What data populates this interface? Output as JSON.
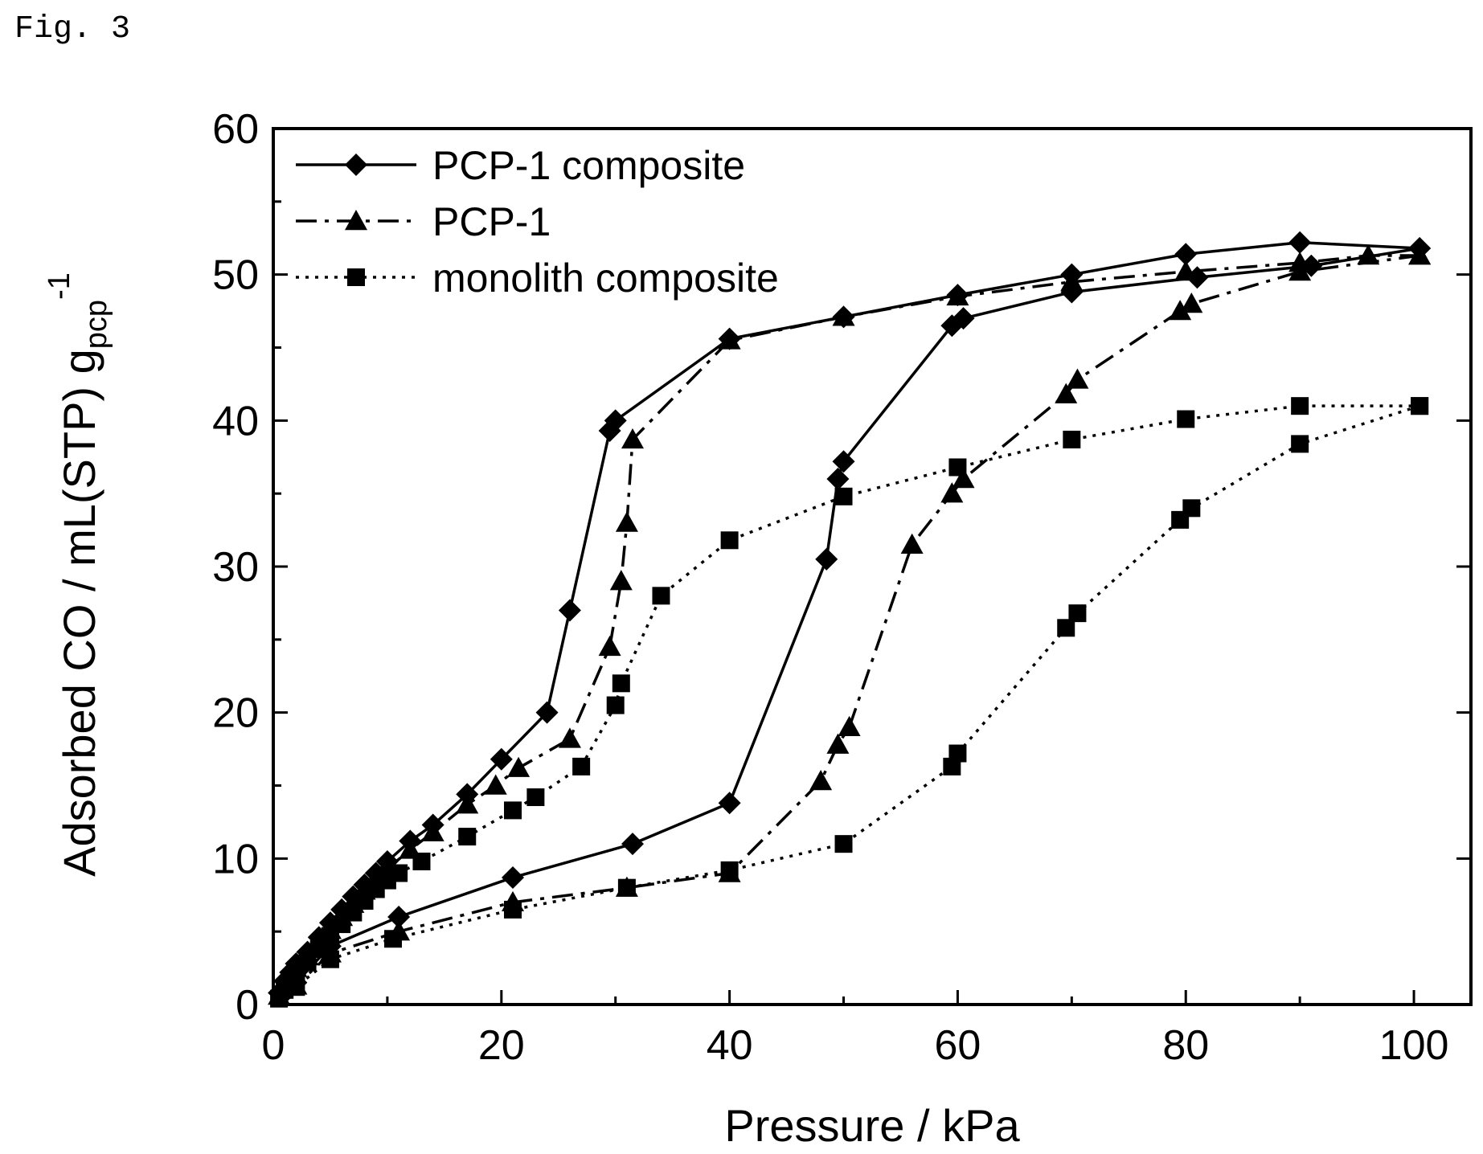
{
  "figure_label": "Fig. 3",
  "chart_data": {
    "type": "line",
    "xlabel": "Pressure / kPa",
    "ylabel_main": "Adsorbed CO / mL(STP) g",
    "ylabel_sub": "pcp",
    "ylabel_sup": "-1",
    "xlim": [
      0,
      105
    ],
    "ylim": [
      0,
      60
    ],
    "xticks": [
      0,
      20,
      40,
      60,
      80,
      100
    ],
    "yticks": [
      0,
      10,
      20,
      30,
      40,
      50,
      60
    ],
    "grid": false,
    "legend_position": "top-left",
    "series": [
      {
        "name": "PCP-1 composite",
        "marker": "diamond",
        "linestyle": "solid",
        "color": "#000000",
        "adsorption": [
          [
            0.5,
            0.8
          ],
          [
            1,
            1.6
          ],
          [
            1.5,
            2.2
          ],
          [
            2,
            2.8
          ],
          [
            3,
            3.6
          ],
          [
            4,
            4.6
          ],
          [
            5,
            5.6
          ],
          [
            6,
            6.5
          ],
          [
            7,
            7.4
          ],
          [
            8,
            8.2
          ],
          [
            9,
            9.0
          ],
          [
            10,
            9.8
          ],
          [
            12,
            11.2
          ],
          [
            14,
            12.3
          ],
          [
            17,
            14.4
          ],
          [
            20,
            16.8
          ],
          [
            24,
            20.0
          ],
          [
            26,
            27.0
          ],
          [
            29.5,
            39.3
          ],
          [
            30,
            40.0
          ],
          [
            40,
            45.6
          ],
          [
            50,
            47.1
          ],
          [
            60,
            48.6
          ],
          [
            70,
            50.0
          ],
          [
            80,
            51.4
          ],
          [
            90,
            52.2
          ],
          [
            100.5,
            51.8
          ]
        ],
        "desorption": [
          [
            100.5,
            51.8
          ],
          [
            91,
            50.6
          ],
          [
            81,
            49.8
          ],
          [
            70,
            48.8
          ],
          [
            60.5,
            47.0
          ],
          [
            59.5,
            46.5
          ],
          [
            50,
            37.2
          ],
          [
            49.5,
            36.0
          ],
          [
            48.5,
            30.5
          ],
          [
            40,
            13.8
          ],
          [
            31.5,
            11.0
          ],
          [
            21,
            8.7
          ],
          [
            11,
            6.0
          ],
          [
            5,
            4.0
          ],
          [
            2,
            1.5
          ],
          [
            1,
            0.8
          ]
        ]
      },
      {
        "name": "PCP-1",
        "marker": "triangle",
        "linestyle": "dashdot",
        "color": "#000000",
        "adsorption": [
          [
            0.5,
            0.6
          ],
          [
            1,
            1.3
          ],
          [
            1.5,
            2.0
          ],
          [
            2,
            2.5
          ],
          [
            3,
            3.3
          ],
          [
            4,
            4.2
          ],
          [
            5,
            5.1
          ],
          [
            6,
            6.0
          ],
          [
            7,
            6.9
          ],
          [
            8,
            7.8
          ],
          [
            9,
            8.6
          ],
          [
            10,
            9.3
          ],
          [
            12,
            10.6
          ],
          [
            14,
            11.8
          ],
          [
            17,
            13.7
          ],
          [
            19.5,
            15.0
          ],
          [
            21.5,
            16.2
          ],
          [
            26,
            18.2
          ],
          [
            29.5,
            24.5
          ],
          [
            30.5,
            29.0
          ],
          [
            31,
            33.0
          ],
          [
            31.5,
            38.7
          ],
          [
            40,
            45.5
          ],
          [
            50,
            47.1
          ],
          [
            60,
            48.5
          ],
          [
            70,
            49.5
          ],
          [
            80,
            50.2
          ],
          [
            90,
            50.8
          ],
          [
            96,
            51.3
          ],
          [
            100.5,
            51.3
          ]
        ],
        "desorption": [
          [
            100.5,
            51.3
          ],
          [
            90,
            50.2
          ],
          [
            80.5,
            48.0
          ],
          [
            79.5,
            47.5
          ],
          [
            70.5,
            42.8
          ],
          [
            69.5,
            41.8
          ],
          [
            60.5,
            36.0
          ],
          [
            59.5,
            35.0
          ],
          [
            56,
            31.5
          ],
          [
            50.5,
            19.0
          ],
          [
            49.5,
            17.8
          ],
          [
            48,
            15.3
          ],
          [
            40,
            9.0
          ],
          [
            31,
            8.0
          ],
          [
            21,
            7.0
          ],
          [
            11,
            5.0
          ],
          [
            5,
            3.5
          ],
          [
            2,
            1.3
          ]
        ]
      },
      {
        "name": "monolith composite",
        "marker": "square",
        "linestyle": "dotted",
        "color": "#000000",
        "adsorption": [
          [
            0.5,
            0.4
          ],
          [
            1,
            1.0
          ],
          [
            1.5,
            1.5
          ],
          [
            2,
            2.0
          ],
          [
            3,
            2.9
          ],
          [
            4,
            3.8
          ],
          [
            5,
            4.7
          ],
          [
            6,
            5.5
          ],
          [
            7,
            6.3
          ],
          [
            8,
            7.1
          ],
          [
            9,
            7.9
          ],
          [
            10,
            8.5
          ],
          [
            11,
            9.0
          ],
          [
            13,
            9.8
          ],
          [
            17,
            11.5
          ],
          [
            21,
            13.3
          ],
          [
            23,
            14.2
          ],
          [
            27,
            16.3
          ],
          [
            30,
            20.5
          ],
          [
            30.5,
            22.0
          ],
          [
            34,
            28.0
          ],
          [
            40,
            31.8
          ],
          [
            50,
            34.8
          ],
          [
            60,
            36.8
          ],
          [
            70,
            38.7
          ],
          [
            80,
            40.1
          ],
          [
            90,
            41.0
          ],
          [
            100.5,
            41.0
          ]
        ],
        "desorption": [
          [
            100.5,
            41.0
          ],
          [
            90,
            38.4
          ],
          [
            80.5,
            34.0
          ],
          [
            79.5,
            33.2
          ],
          [
            70.5,
            26.8
          ],
          [
            69.5,
            25.8
          ],
          [
            60,
            17.2
          ],
          [
            59.5,
            16.3
          ],
          [
            50,
            11.0
          ],
          [
            40,
            9.2
          ],
          [
            31,
            8.0
          ],
          [
            21,
            6.5
          ],
          [
            10.5,
            4.5
          ],
          [
            5,
            3.1
          ],
          [
            2,
            1.2
          ]
        ]
      }
    ]
  }
}
